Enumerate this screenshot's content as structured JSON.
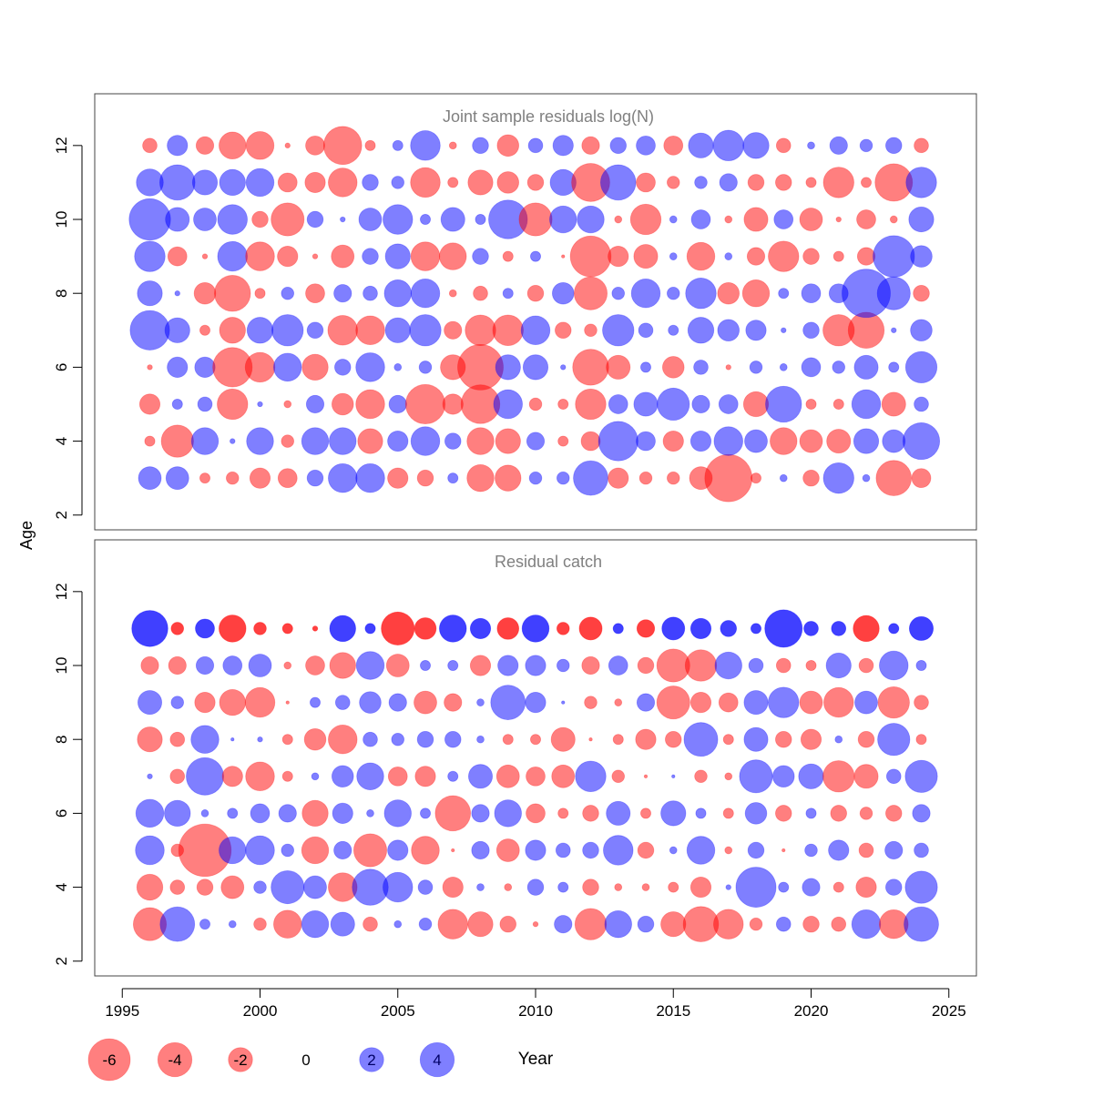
{
  "figure": {
    "ylabel": "Age",
    "xlabel": "Year",
    "x_ticks": [
      1995,
      2000,
      2005,
      2010,
      2015,
      2020,
      2025
    ],
    "y_ticks": [
      2,
      4,
      6,
      8,
      10,
      12
    ],
    "xlim": [
      1994,
      2026
    ],
    "ylim": [
      1.6,
      13.4
    ]
  },
  "legend": {
    "entries": [
      {
        "label": "-6",
        "value": -6
      },
      {
        "label": "-4",
        "value": -4
      },
      {
        "label": "-2",
        "value": -2
      },
      {
        "label": "0",
        "value": 0
      },
      {
        "label": "2",
        "value": 2
      },
      {
        "label": "4",
        "value": 4
      }
    ]
  },
  "colors": {
    "negative": "#ff0000",
    "positive": "#0000ff",
    "panel_title": "#808080",
    "axis": "#000000"
  },
  "chart_data": [
    {
      "type": "scatter",
      "encoding": "bubble: area proportional to absolute residual, red = negative, blue = positive",
      "title": "Joint sample residuals log(N)",
      "alpha": 0.5,
      "x": [
        1996,
        1997,
        1998,
        1999,
        2000,
        2001,
        2002,
        2003,
        2004,
        2005,
        2006,
        2007,
        2008,
        2009,
        2010,
        2011,
        2012,
        2013,
        2014,
        2015,
        2016,
        2017,
        2018,
        2019,
        2020,
        2021,
        2022,
        2023,
        2024
      ],
      "ages": [
        3,
        4,
        5,
        6,
        7,
        8,
        9,
        10,
        11,
        12
      ],
      "residuals": {
        "3": [
          1.0,
          1.0,
          -0.2,
          -0.3,
          -0.8,
          -0.7,
          0.5,
          1.6,
          1.6,
          -0.8,
          -0.5,
          0.2,
          -1.4,
          -1.3,
          0.3,
          0.3,
          2.3,
          -0.8,
          -0.3,
          -0.3,
          -1.0,
          -4.3,
          -0.2,
          0.1,
          -0.5,
          1.8,
          0.1,
          -2.4,
          -0.7
        ],
        "4": [
          -0.2,
          -2.0,
          1.4,
          0.05,
          1.4,
          -0.3,
          1.4,
          1.4,
          -1.2,
          0.8,
          1.6,
          0.5,
          -1.4,
          -1.2,
          0.6,
          -0.2,
          -0.7,
          3.0,
          0.7,
          -0.8,
          0.8,
          1.6,
          1.0,
          -1.4,
          -1.0,
          -1.1,
          1.2,
          1.0,
          2.6
        ],
        "5": [
          -0.8,
          0.2,
          0.4,
          -1.8,
          0.05,
          -0.1,
          0.6,
          -0.9,
          -1.6,
          0.6,
          -3.0,
          -0.8,
          -2.9,
          1.6,
          -0.3,
          -0.2,
          -1.8,
          0.7,
          1.1,
          2.0,
          0.6,
          0.7,
          -1.2,
          2.5,
          -0.2,
          -0.2,
          1.6,
          -1.1,
          0.4
        ],
        "6": [
          -0.05,
          0.8,
          0.8,
          -3.0,
          -1.7,
          1.5,
          -1.3,
          0.5,
          1.6,
          0.1,
          0.3,
          -1.2,
          -4.0,
          1.2,
          1.2,
          0.05,
          -2.5,
          -1.1,
          0.2,
          -0.9,
          0.4,
          -0.05,
          0.3,
          0.1,
          0.7,
          0.3,
          1.1,
          0.2,
          1.9
        ],
        "7": [
          3.0,
          1.2,
          -0.2,
          -1.3,
          1.3,
          1.9,
          0.5,
          -1.7,
          -1.6,
          1.2,
          1.9,
          -0.6,
          -1.8,
          -1.8,
          1.6,
          -0.5,
          -0.3,
          1.9,
          0.4,
          0.2,
          1.3,
          0.9,
          0.8,
          0.05,
          0.5,
          -1.9,
          -2.5,
          0.05,
          0.9
        ],
        "8": [
          1.2,
          0.05,
          -0.9,
          -2.5,
          -0.2,
          0.3,
          -0.7,
          0.6,
          0.4,
          1.4,
          1.6,
          -0.1,
          -0.4,
          0.2,
          -0.5,
          0.9,
          -2.1,
          0.3,
          1.6,
          0.3,
          1.8,
          -0.9,
          -1.4,
          0.2,
          0.7,
          0.7,
          4.5,
          2.1,
          -0.5
        ],
        "9": [
          1.8,
          -0.7,
          -0.05,
          1.7,
          -1.6,
          -0.8,
          -0.05,
          -1.0,
          0.5,
          1.2,
          -1.6,
          -1.4,
          0.5,
          -0.2,
          0.2,
          -0.02,
          -3.2,
          -0.8,
          -1.1,
          0.1,
          -1.5,
          0.1,
          -0.6,
          -1.8,
          -0.5,
          -0.2,
          -0.6,
          3.3,
          0.9
        ],
        "10": [
          3.3,
          1.1,
          1.0,
          1.7,
          -0.5,
          -2.1,
          0.5,
          0.05,
          1.0,
          1.7,
          0.2,
          1.1,
          0.2,
          2.9,
          -2.1,
          1.4,
          1.4,
          -0.1,
          -1.8,
          0.1,
          0.7,
          -0.1,
          -1.1,
          0.7,
          -1.0,
          -0.05,
          -0.7,
          -0.1,
          1.2
        ],
        "11": [
          1.4,
          2.4,
          1.2,
          1.3,
          1.5,
          -0.7,
          -0.8,
          -1.6,
          0.5,
          0.3,
          -1.7,
          -0.2,
          -1.2,
          -0.9,
          -0.5,
          1.3,
          -2.8,
          2.4,
          -0.7,
          -0.3,
          0.3,
          0.6,
          -0.5,
          -0.5,
          -0.2,
          -1.8,
          -0.2,
          -2.7,
          1.8
        ],
        "12": [
          -0.4,
          0.8,
          -0.6,
          -1.4,
          -1.5,
          -0.05,
          -0.7,
          -2.8,
          -0.2,
          0.2,
          1.7,
          -0.1,
          0.5,
          -0.9,
          0.4,
          0.8,
          -0.6,
          0.5,
          0.7,
          -0.7,
          1.2,
          1.8,
          1.3,
          -0.4,
          0.1,
          0.6,
          0.3,
          0.5,
          -0.4
        ]
      }
    },
    {
      "type": "scatter",
      "encoding": "bubble: area proportional to absolute residual, red = negative, blue = positive",
      "title": "Residual catch",
      "x": [
        1996,
        1997,
        1998,
        1999,
        2000,
        2001,
        2002,
        2003,
        2004,
        2005,
        2006,
        2007,
        2008,
        2009,
        2010,
        2011,
        2012,
        2013,
        2014,
        2015,
        2016,
        2017,
        2018,
        2019,
        2020,
        2021,
        2022,
        2023,
        2024
      ],
      "ages": [
        3,
        4,
        5,
        6,
        7,
        8,
        9,
        10,
        11
      ],
      "alpha": {
        "3-10": 0.5,
        "11": 0.75
      },
      "residuals": {
        "3": [
          -2.1,
          2.3,
          0.2,
          0.1,
          -0.3,
          -1.5,
          1.4,
          1.1,
          -0.4,
          0.1,
          0.3,
          -1.7,
          -1.2,
          -0.5,
          -0.05,
          0.6,
          -1.9,
          1.4,
          0.5,
          -1.2,
          -2.4,
          -1.7,
          -0.3,
          0.4,
          -0.5,
          -0.4,
          1.6,
          -1.6,
          2.3
        ],
        "4": [
          -1.3,
          -0.4,
          -0.5,
          -1.0,
          0.3,
          2.1,
          1.0,
          -1.6,
          2.5,
          1.7,
          0.4,
          -0.8,
          0.1,
          -0.1,
          0.5,
          0.2,
          -0.5,
          -0.1,
          -0.1,
          -0.2,
          -0.8,
          0.05,
          3.1,
          0.2,
          0.6,
          -0.2,
          -0.8,
          0.5,
          2.0
        ],
        "5": [
          1.6,
          -0.3,
          -5.3,
          1.4,
          1.6,
          0.3,
          -1.4,
          0.6,
          -2.1,
          0.8,
          -1.5,
          -0.02,
          0.6,
          -1.0,
          0.8,
          0.4,
          0.5,
          1.7,
          -0.5,
          0.1,
          1.5,
          -0.1,
          0.5,
          -0.02,
          0.3,
          0.8,
          -0.4,
          0.6,
          0.4
        ],
        "6": [
          1.5,
          1.3,
          0.1,
          0.2,
          0.7,
          0.6,
          -1.3,
          0.8,
          0.1,
          1.4,
          0.2,
          -2.4,
          0.6,
          1.4,
          -0.7,
          -0.2,
          -0.5,
          1.1,
          -0.2,
          1.2,
          0.2,
          -0.2,
          0.9,
          -0.5,
          0.2,
          -0.5,
          -0.3,
          -0.5,
          0.6
        ],
        "7": [
          0.05,
          -0.4,
          2.7,
          -0.8,
          -1.6,
          -0.2,
          0.1,
          0.9,
          1.4,
          -0.7,
          -0.8,
          0.2,
          1.1,
          -1.0,
          -0.7,
          -1.0,
          1.8,
          -0.3,
          -0.02,
          0.02,
          -0.3,
          -0.1,
          2.1,
          0.9,
          1.2,
          -1.9,
          -1.1,
          0.4,
          2.0
        ],
        "8": [
          -1.2,
          -0.4,
          1.5,
          0.02,
          0.05,
          -0.2,
          -0.9,
          -1.6,
          0.4,
          0.3,
          0.5,
          0.5,
          0.1,
          -0.2,
          -0.2,
          -1.1,
          -0.02,
          -0.2,
          -0.8,
          -0.5,
          2.2,
          -0.2,
          1.1,
          -0.5,
          -0.8,
          0.1,
          -0.5,
          2.0,
          -0.2
        ],
        "9": [
          1.1,
          0.3,
          -0.8,
          -1.3,
          -1.7,
          -0.02,
          0.2,
          0.4,
          0.9,
          0.6,
          -1.0,
          -0.6,
          0.1,
          2.3,
          0.8,
          0.02,
          -0.3,
          -0.1,
          0.6,
          -2.1,
          -0.8,
          -0.7,
          1.1,
          1.8,
          -1.0,
          -1.7,
          1.0,
          -1.9,
          -0.4
        ],
        "10": [
          -0.6,
          -0.6,
          0.6,
          0.7,
          1.0,
          -0.1,
          -0.7,
          -1.3,
          1.5,
          -1.0,
          0.2,
          0.2,
          -0.8,
          0.8,
          0.8,
          0.3,
          -0.6,
          0.7,
          -0.5,
          -2.1,
          -1.9,
          1.4,
          0.4,
          -0.4,
          -0.2,
          1.2,
          -0.4,
          1.6,
          0.2
        ],
        "11": [
          2.5,
          -0.3,
          0.7,
          -1.4,
          -0.3,
          -0.2,
          -0.05,
          1.3,
          0.2,
          -2.1,
          -0.9,
          1.4,
          0.8,
          -0.9,
          1.4,
          -0.3,
          -1.0,
          0.2,
          -0.6,
          1.0,
          0.8,
          0.5,
          0.2,
          2.7,
          0.4,
          0.4,
          -1.3,
          0.2,
          1.1
        ]
      }
    }
  ]
}
